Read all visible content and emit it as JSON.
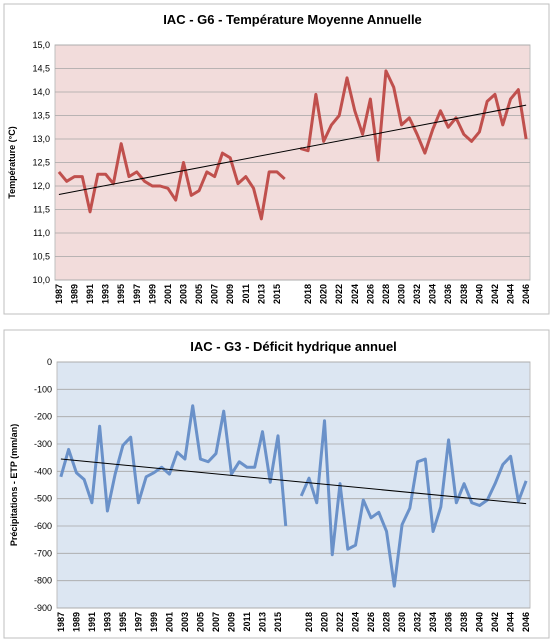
{
  "chart_data": [
    {
      "type": "line",
      "title": "IAC - G6 - Température Moyenne Annuelle",
      "ylabel": "Température (°C)",
      "categories": [
        "1987",
        null,
        "1989",
        null,
        "1991",
        null,
        "1993",
        null,
        "1995",
        null,
        "1997",
        null,
        "1999",
        null,
        "2001",
        null,
        "2003",
        null,
        "2005",
        null,
        "2007",
        null,
        "2009",
        null,
        "2011",
        null,
        "2013",
        null,
        "2015",
        null,
        null,
        null,
        "2018",
        null,
        "2020",
        null,
        "2022",
        null,
        "2024",
        null,
        "2026",
        null,
        "2028",
        null,
        "2030",
        null,
        "2032",
        null,
        "2034",
        null,
        "2036",
        null,
        "2038",
        null,
        "2040",
        null,
        "2042",
        null,
        "2044",
        null,
        "2046"
      ],
      "series": [
        {
          "color": "#c0504d",
          "values": [
            12.3,
            12.1,
            12.2,
            12.2,
            11.45,
            12.25,
            12.25,
            12.05,
            12.9,
            12.2,
            12.3,
            12.1,
            12.0,
            12.0,
            11.95,
            11.7,
            12.5,
            11.8,
            11.9,
            12.3,
            12.2,
            12.7,
            12.6,
            12.05,
            12.2,
            11.95,
            11.3,
            12.3,
            12.3,
            12.15,
            null,
            12.8,
            12.75,
            13.95,
            12.95,
            13.3,
            13.5,
            14.3,
            13.6,
            13.1,
            13.85,
            12.55,
            14.45,
            14.1,
            13.3,
            13.45,
            13.1,
            12.7,
            13.2,
            13.6,
            13.25,
            13.45,
            13.1,
            12.95,
            13.15,
            13.8,
            13.95,
            13.3,
            13.85,
            14.05,
            13.0
          ]
        }
      ],
      "trendline": {
        "color": "#000000",
        "values": [
          11.82,
          13.72
        ]
      },
      "ylim": [
        10,
        15
      ],
      "yticks": [
        {
          "value": 10,
          "label": "10,0"
        },
        {
          "value": 10.5,
          "label": "10,5"
        },
        {
          "value": 11,
          "label": "11,0"
        },
        {
          "value": 11.5,
          "label": "11,5"
        },
        {
          "value": 12,
          "label": "12,0"
        },
        {
          "value": 12.5,
          "label": "12,5"
        },
        {
          "value": 13,
          "label": "13,0"
        },
        {
          "value": 13.5,
          "label": "13,5"
        },
        {
          "value": 14,
          "label": "14,0"
        },
        {
          "value": 14.5,
          "label": "14,5"
        },
        {
          "value": 15,
          "label": "15,0"
        }
      ],
      "grid": true,
      "background": "#f2dcdb"
    },
    {
      "type": "line",
      "title": "IAC - G3 - Déficit hydrique annuel",
      "ylabel": "Précipitations - ETP (mm/an)",
      "categories": [
        "1987",
        null,
        "1989",
        null,
        "1991",
        null,
        "1993",
        null,
        "1995",
        null,
        "1997",
        null,
        "1999",
        null,
        "2001",
        null,
        "2003",
        null,
        "2005",
        null,
        "2007",
        null,
        "2009",
        null,
        "2011",
        null,
        "2013",
        null,
        "2015",
        null,
        null,
        null,
        "2018",
        null,
        "2020",
        null,
        "2022",
        null,
        "2024",
        null,
        "2026",
        null,
        "2028",
        null,
        "2030",
        null,
        "2032",
        null,
        "2034",
        null,
        "2036",
        null,
        "2038",
        null,
        "2040",
        null,
        "2042",
        null,
        "2044",
        null,
        "2046"
      ],
      "series": [
        {
          "color": "#6a91c9",
          "values": [
            -420,
            -320,
            -405,
            -430,
            -515,
            -235,
            -545,
            -410,
            -305,
            -275,
            -515,
            -420,
            -405,
            -385,
            -410,
            -330,
            -355,
            -160,
            -355,
            -365,
            -335,
            -180,
            -410,
            -365,
            -385,
            -385,
            -255,
            -440,
            -270,
            -600,
            null,
            -490,
            -425,
            -515,
            -215,
            -705,
            -445,
            -685,
            -670,
            -505,
            -570,
            -550,
            -620,
            -820,
            -595,
            -535,
            -365,
            -355,
            -620,
            -530,
            -285,
            -515,
            -445,
            -515,
            -525,
            -505,
            -445,
            -375,
            -345,
            -510,
            -435
          ]
        }
      ],
      "trendline": {
        "color": "#000000",
        "values": [
          -355,
          -518
        ]
      },
      "ylim": [
        -900,
        0
      ],
      "yticks": [
        -900,
        -800,
        -700,
        -600,
        -500,
        -400,
        -300,
        -200,
        -100,
        0
      ],
      "grid": true,
      "background": "#dce6f2"
    }
  ]
}
